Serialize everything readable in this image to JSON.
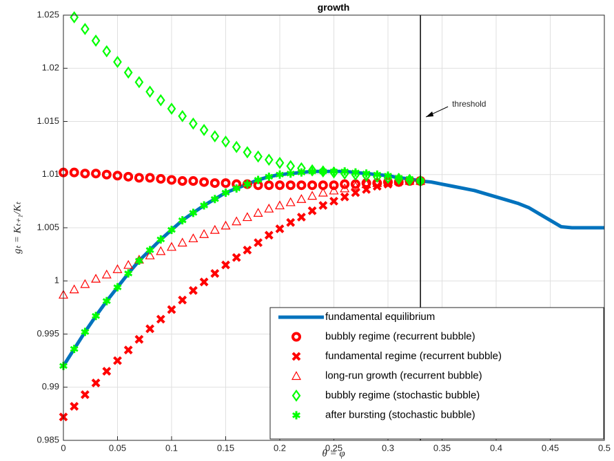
{
  "chart_data": {
    "type": "line",
    "title": "growth",
    "x_label": "θ = φ",
    "y_label": "gₜ = Kₜ₊₁/Kₜ",
    "x": [
      0,
      0.01,
      0.02,
      0.03,
      0.04,
      0.05,
      0.06,
      0.07,
      0.08,
      0.09,
      0.1,
      0.11,
      0.12,
      0.13,
      0.14,
      0.15,
      0.16,
      0.17,
      0.18,
      0.19,
      0.2,
      0.21,
      0.22,
      0.23,
      0.24,
      0.25,
      0.26,
      0.27,
      0.28,
      0.29,
      0.3,
      0.31,
      0.32,
      0.33,
      0.34,
      0.35,
      0.36,
      0.37,
      0.38,
      0.39,
      0.4,
      0.41,
      0.42,
      0.43,
      0.44,
      0.45,
      0.46,
      0.47,
      0.48,
      0.49,
      0.5
    ],
    "series": [
      {
        "name": "fundamental equilibrium",
        "color": "#0072bd",
        "marker": "line",
        "values": [
          0.992,
          0.9936,
          0.9952,
          0.9967,
          0.9981,
          0.9994,
          1.0007,
          1.0019,
          1.0029,
          1.0039,
          1.0048,
          1.0057,
          1.0064,
          1.0071,
          1.0077,
          1.0083,
          1.0087,
          1.0091,
          1.0095,
          1.0098,
          1.01,
          1.0101,
          1.0102,
          1.0103,
          1.0103,
          1.0103,
          1.0103,
          1.0102,
          1.0101,
          1.01,
          1.0099,
          1.0097,
          1.0096,
          1.0094,
          1.0093,
          1.0091,
          1.0089,
          1.0087,
          1.0085,
          1.0082,
          1.0079,
          1.0076,
          1.0073,
          1.0069,
          1.0063,
          1.0057,
          1.0051,
          1.005,
          1.005,
          1.005,
          1.005
        ]
      },
      {
        "name": "bubbly regime (recurrent bubble)",
        "color": "#ff0000",
        "marker": "circle",
        "values": [
          1.0102,
          1.0102,
          1.0101,
          1.0101,
          1.01,
          1.0099,
          1.0098,
          1.0097,
          1.0097,
          1.0096,
          1.0095,
          1.0094,
          1.0094,
          1.0093,
          1.0092,
          1.0092,
          1.0091,
          1.0091,
          1.009,
          1.009,
          1.009,
          1.009,
          1.009,
          1.009,
          1.009,
          1.009,
          1.0091,
          1.0091,
          1.0092,
          1.0092,
          1.0093,
          1.0093,
          1.0094,
          1.0094,
          null,
          null,
          null,
          null,
          null,
          null,
          null,
          null,
          null,
          null,
          null,
          null,
          null,
          null,
          null,
          null,
          null
        ]
      },
      {
        "name": "fundamental regime (recurrent bubble)",
        "color": "#ff0000",
        "marker": "x",
        "values": [
          0.9872,
          0.9882,
          0.9893,
          0.9904,
          0.9915,
          0.9925,
          0.9935,
          0.9945,
          0.9955,
          0.9964,
          0.9973,
          0.9982,
          0.9991,
          0.9999,
          1.0007,
          1.0015,
          1.0022,
          1.0029,
          1.0036,
          1.0043,
          1.0049,
          1.0055,
          1.006,
          1.0066,
          1.0071,
          1.0075,
          1.0079,
          1.0083,
          1.0086,
          1.0089,
          1.0091,
          1.0093,
          1.0094,
          1.0094,
          null,
          null,
          null,
          null,
          null,
          null,
          null,
          null,
          null,
          null,
          null,
          null,
          null,
          null,
          null,
          null,
          null
        ]
      },
      {
        "name": "long-run growth (recurrent bubble)",
        "color": "#ff0000",
        "marker": "triangle",
        "values": [
          0.9987,
          0.9992,
          0.9997,
          1.0002,
          1.0006,
          1.0011,
          1.0015,
          1.002,
          1.0024,
          1.0028,
          1.0032,
          1.0036,
          1.004,
          1.0044,
          1.0048,
          1.0052,
          1.0056,
          1.006,
          1.0064,
          1.0068,
          1.0071,
          1.0074,
          1.0077,
          1.008,
          1.0083,
          1.0085,
          1.0087,
          1.0089,
          1.0091,
          1.0092,
          1.0093,
          1.0094,
          1.0094,
          1.0094,
          null,
          null,
          null,
          null,
          null,
          null,
          null,
          null,
          null,
          null,
          null,
          null,
          null,
          null,
          null,
          null,
          null
        ]
      },
      {
        "name": "bubbly regime (stochastic bubble)",
        "color": "#00ff00",
        "marker": "diamond",
        "values": [
          null,
          1.0248,
          1.0237,
          1.0226,
          1.0216,
          1.0206,
          1.0196,
          1.0187,
          1.0178,
          1.017,
          1.0162,
          1.0155,
          1.0148,
          1.0142,
          1.0136,
          1.0131,
          1.0126,
          1.0121,
          1.0117,
          1.0114,
          1.0111,
          1.0108,
          1.0106,
          1.0104,
          1.0103,
          1.0102,
          1.0101,
          1.01,
          1.0099,
          1.0098,
          1.0097,
          1.0096,
          1.0095,
          1.0094,
          null,
          null,
          null,
          null,
          null,
          null,
          null,
          null,
          null,
          null,
          null,
          null,
          null,
          null,
          null,
          null,
          null
        ]
      },
      {
        "name": "after bursting (stochastic bubble)",
        "color": "#00ff00",
        "marker": "asterisk",
        "values": [
          0.992,
          0.9936,
          0.9952,
          0.9967,
          0.9981,
          0.9994,
          1.0007,
          1.0019,
          1.0029,
          1.0039,
          1.0048,
          1.0057,
          1.0064,
          1.0071,
          1.0077,
          1.0083,
          1.0087,
          1.0091,
          1.0095,
          1.0098,
          1.01,
          1.0101,
          1.0102,
          1.0103,
          1.0103,
          1.0103,
          1.0103,
          1.0102,
          1.0101,
          1.01,
          1.0099,
          1.0097,
          1.0096,
          1.0094,
          null,
          null,
          null,
          null,
          null,
          null,
          null,
          null,
          null,
          null,
          null,
          null,
          null,
          null,
          null,
          null,
          null
        ]
      }
    ],
    "threshold": {
      "x": 0.33,
      "label": "threshold"
    },
    "xlim": [
      0,
      0.5
    ],
    "xticks": [
      0,
      0.05,
      0.1,
      0.15,
      0.2,
      0.25,
      0.3,
      0.35,
      0.4,
      0.45,
      0.5
    ],
    "ylim": [
      0.985,
      1.025
    ],
    "yticks": [
      0.985,
      0.99,
      0.995,
      1,
      1.005,
      1.01,
      1.015,
      1.02,
      1.025
    ],
    "grid": true,
    "legend": "lower right"
  }
}
